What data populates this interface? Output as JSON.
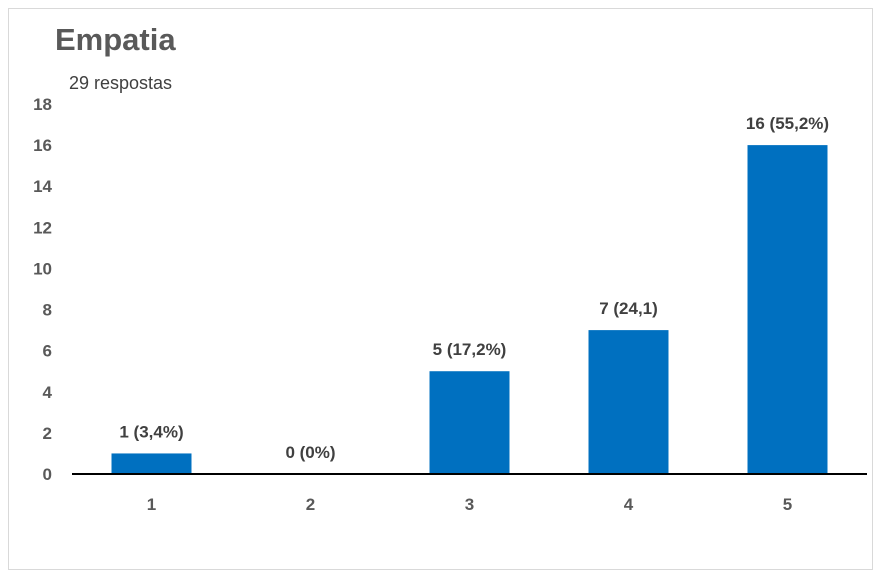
{
  "chart_data": {
    "type": "bar",
    "title": "Empatia",
    "subtitle": "29 respostas",
    "categories": [
      "1",
      "2",
      "3",
      "4",
      "5"
    ],
    "values": [
      1,
      0,
      5,
      7,
      16
    ],
    "data_labels": [
      "1 (3,4%)",
      "0 (0%)",
      "5 (17,2%)",
      "7 (24,1)",
      "16 (55,2%)"
    ],
    "ylim": [
      0,
      18
    ],
    "yticks": [
      "0",
      "2",
      "4",
      "6",
      "8",
      "10",
      "12",
      "14",
      "16",
      "18"
    ],
    "xlabel": "",
    "ylabel": "",
    "grid": false,
    "legend": "none",
    "bar_color": "#0070c0",
    "axis_color": "#000000"
  }
}
